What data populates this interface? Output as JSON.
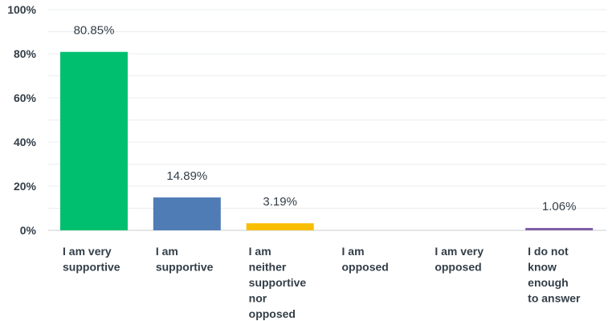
{
  "chart_data": {
    "type": "bar",
    "title": "",
    "xlabel": "",
    "ylabel": "",
    "ylim": [
      0,
      100
    ],
    "y_ticks": [
      "0%",
      "20%",
      "40%",
      "60%",
      "80%",
      "100%"
    ],
    "grid": true,
    "categories": [
      "I am very supportive",
      "I am supportive",
      "I am neither supportive nor opposed",
      "I am opposed",
      "I am very opposed",
      "I do not know enough to answer"
    ],
    "category_lines": [
      [
        "I am very",
        "supportive"
      ],
      [
        "I am",
        "supportive"
      ],
      [
        "I am",
        "neither",
        "supportive",
        "nor",
        "opposed"
      ],
      [
        "I am",
        "opposed"
      ],
      [
        "I am very",
        "opposed"
      ],
      [
        "I do not",
        "know",
        "enough",
        "to answer"
      ]
    ],
    "values": [
      80.85,
      14.89,
      3.19,
      0,
      0,
      1.06
    ],
    "data_labels": [
      "80.85%",
      "14.89%",
      "3.19%",
      "",
      "",
      "1.06%"
    ],
    "colors": [
      "#00bf6f",
      "#507cb6",
      "#f9be00",
      "#6bc8cd",
      "#ff8b4f",
      "#7d5ba6"
    ]
  }
}
